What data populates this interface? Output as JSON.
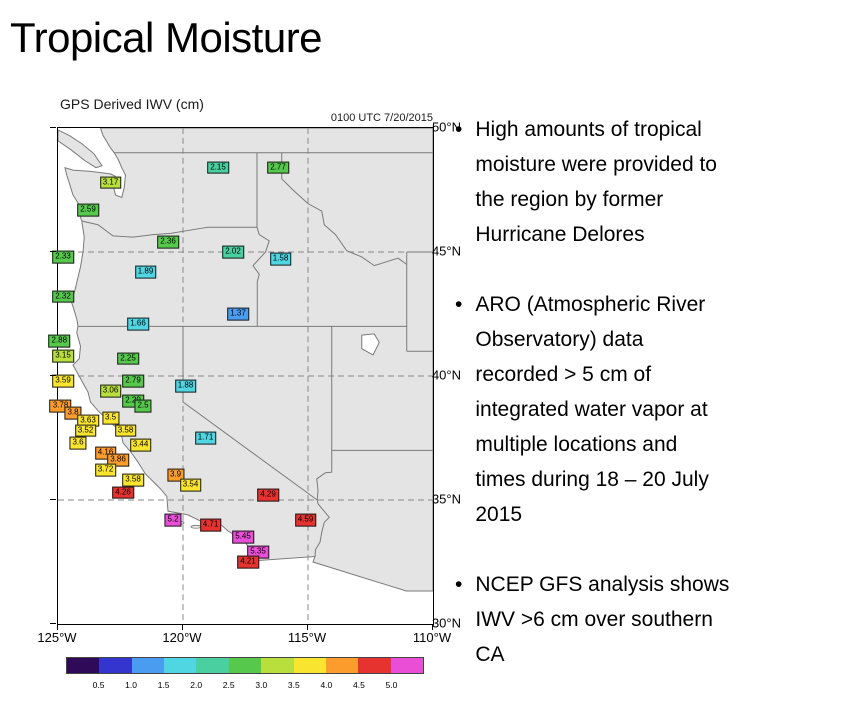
{
  "slide": {
    "title": "Tropical Moisture",
    "bullet_marker": "•",
    "bullets": [
      {
        "lines": [
          "High amounts of tropical",
          "moisture were provided to",
          "the region by former",
          "Hurricane Delores"
        ]
      },
      {
        "lines": [
          "ARO (Atmospheric River",
          "Observatory) data",
          "recorded > 5 cm of",
          "integrated water vapor at",
          "multiple locations and",
          "times during 18 – 20 July",
          "2015"
        ]
      },
      {
        "lines": [
          "NCEP GFS analysis shows",
          "IWV >6 cm over southern",
          "CA"
        ]
      }
    ]
  },
  "chart_data": {
    "type": "scatter",
    "title": "GPS Derived IWV (cm)",
    "timestamp": "0100  UTC 7/20/2015",
    "x_axis": {
      "ticks": [
        "125°W",
        "120°W",
        "115°W",
        "110°W"
      ],
      "range": [
        125,
        110
      ]
    },
    "y_axis": {
      "ticks": [
        "50°N",
        "45°N",
        "40°N",
        "35°N",
        "30°N"
      ],
      "range": [
        50,
        30
      ]
    },
    "grid": {
      "dashed_lon": [
        120,
        115
      ],
      "dashed_lat": [
        45,
        40,
        35
      ]
    },
    "stations": [
      {
        "lon": 118.6,
        "lat": 48.4,
        "v": 2.15
      },
      {
        "lon": 116.2,
        "lat": 48.4,
        "v": 2.77
      },
      {
        "lon": 122.9,
        "lat": 47.8,
        "v": 3.17
      },
      {
        "lon": 123.8,
        "lat": 46.7,
        "v": 2.59
      },
      {
        "lon": 120.6,
        "lat": 45.4,
        "v": 2.36
      },
      {
        "lon": 118.0,
        "lat": 45.0,
        "v": 2.02
      },
      {
        "lon": 124.8,
        "lat": 44.8,
        "v": 2.33
      },
      {
        "lon": 116.1,
        "lat": 44.7,
        "v": 1.58
      },
      {
        "lon": 121.5,
        "lat": 44.2,
        "v": 1.89
      },
      {
        "lon": 124.8,
        "lat": 43.2,
        "v": 2.32
      },
      {
        "lon": 117.8,
        "lat": 42.5,
        "v": 1.37
      },
      {
        "lon": 121.8,
        "lat": 42.1,
        "v": 1.66
      },
      {
        "lon": 124.95,
        "lat": 41.4,
        "v": 2.88
      },
      {
        "lon": 124.8,
        "lat": 40.8,
        "v": 3.15
      },
      {
        "lon": 122.2,
        "lat": 40.7,
        "v": 2.25
      },
      {
        "lon": 124.8,
        "lat": 39.8,
        "v": 3.59
      },
      {
        "lon": 122.0,
        "lat": 39.8,
        "v": 2.79
      },
      {
        "lon": 122.9,
        "lat": 39.4,
        "v": 3.06
      },
      {
        "lon": 119.9,
        "lat": 39.6,
        "v": 1.88
      },
      {
        "lon": 122.0,
        "lat": 39.0,
        "v": 2.29
      },
      {
        "lon": 121.6,
        "lat": 38.8,
        "v": 2.5
      },
      {
        "lon": 124.9,
        "lat": 38.8,
        "v": 3.78
      },
      {
        "lon": 124.4,
        "lat": 38.5,
        "v": 3.8
      },
      {
        "lon": 123.8,
        "lat": 38.2,
        "v": 3.63
      },
      {
        "lon": 122.9,
        "lat": 38.3,
        "v": 3.5
      },
      {
        "lon": 123.9,
        "lat": 37.8,
        "v": 3.52
      },
      {
        "lon": 122.3,
        "lat": 37.8,
        "v": 3.58
      },
      {
        "lon": 119.1,
        "lat": 37.5,
        "v": 1.71
      },
      {
        "lon": 124.2,
        "lat": 37.3,
        "v": 3.6
      },
      {
        "lon": 121.7,
        "lat": 37.2,
        "v": 3.44
      },
      {
        "lon": 123.1,
        "lat": 36.9,
        "v": 4.16
      },
      {
        "lon": 122.6,
        "lat": 36.6,
        "v": 3.86
      },
      {
        "lon": 123.1,
        "lat": 36.2,
        "v": 3.72
      },
      {
        "lon": 120.3,
        "lat": 36.0,
        "v": 3.9
      },
      {
        "lon": 122.0,
        "lat": 35.8,
        "v": 3.58
      },
      {
        "lon": 119.7,
        "lat": 35.6,
        "v": 3.54
      },
      {
        "lon": 122.4,
        "lat": 35.3,
        "v": 4.26
      },
      {
        "lon": 116.6,
        "lat": 35.2,
        "v": 4.29
      },
      {
        "lon": 120.4,
        "lat": 34.2,
        "v": 5.2
      },
      {
        "lon": 118.9,
        "lat": 34.0,
        "v": 4.71
      },
      {
        "lon": 115.1,
        "lat": 34.2,
        "v": 4.59
      },
      {
        "lon": 117.6,
        "lat": 33.5,
        "v": 5.45
      },
      {
        "lon": 117.0,
        "lat": 32.9,
        "v": 5.35
      },
      {
        "lon": 117.4,
        "lat": 32.5,
        "v": 4.21
      }
    ],
    "color_scale": [
      {
        "max": 0.5,
        "color": "#2e0a59"
      },
      {
        "max": 1.0,
        "color": "#3434cf"
      },
      {
        "max": 1.5,
        "color": "#4a9cf0"
      },
      {
        "max": 2.0,
        "color": "#4fd6e2"
      },
      {
        "max": 2.2,
        "color": "#49cfa0"
      },
      {
        "max": 3.0,
        "color": "#56c94d"
      },
      {
        "max": 3.38,
        "color": "#b8df3c"
      },
      {
        "max": 3.76,
        "color": "#f9e52f"
      },
      {
        "max": 4.2,
        "color": "#fb9c2c"
      },
      {
        "max": 5.0,
        "color": "#e73330"
      },
      {
        "max": 99,
        "color": "#e94ed6"
      }
    ],
    "colorbar": {
      "tick_labels": [
        "0.5",
        "1.0",
        "1.5",
        "2.0",
        "2.5",
        "3.0",
        "3.5",
        "4.0",
        "4.5",
        "5.0"
      ],
      "colors": [
        "#2e0a59",
        "#3434cf",
        "#4a9cf0",
        "#4fd6e2",
        "#49cfa0",
        "#56c94d",
        "#b8df3c",
        "#f9e52f",
        "#fb9c2c",
        "#e73330",
        "#e94ed6"
      ]
    },
    "legend_position": "bottom"
  }
}
